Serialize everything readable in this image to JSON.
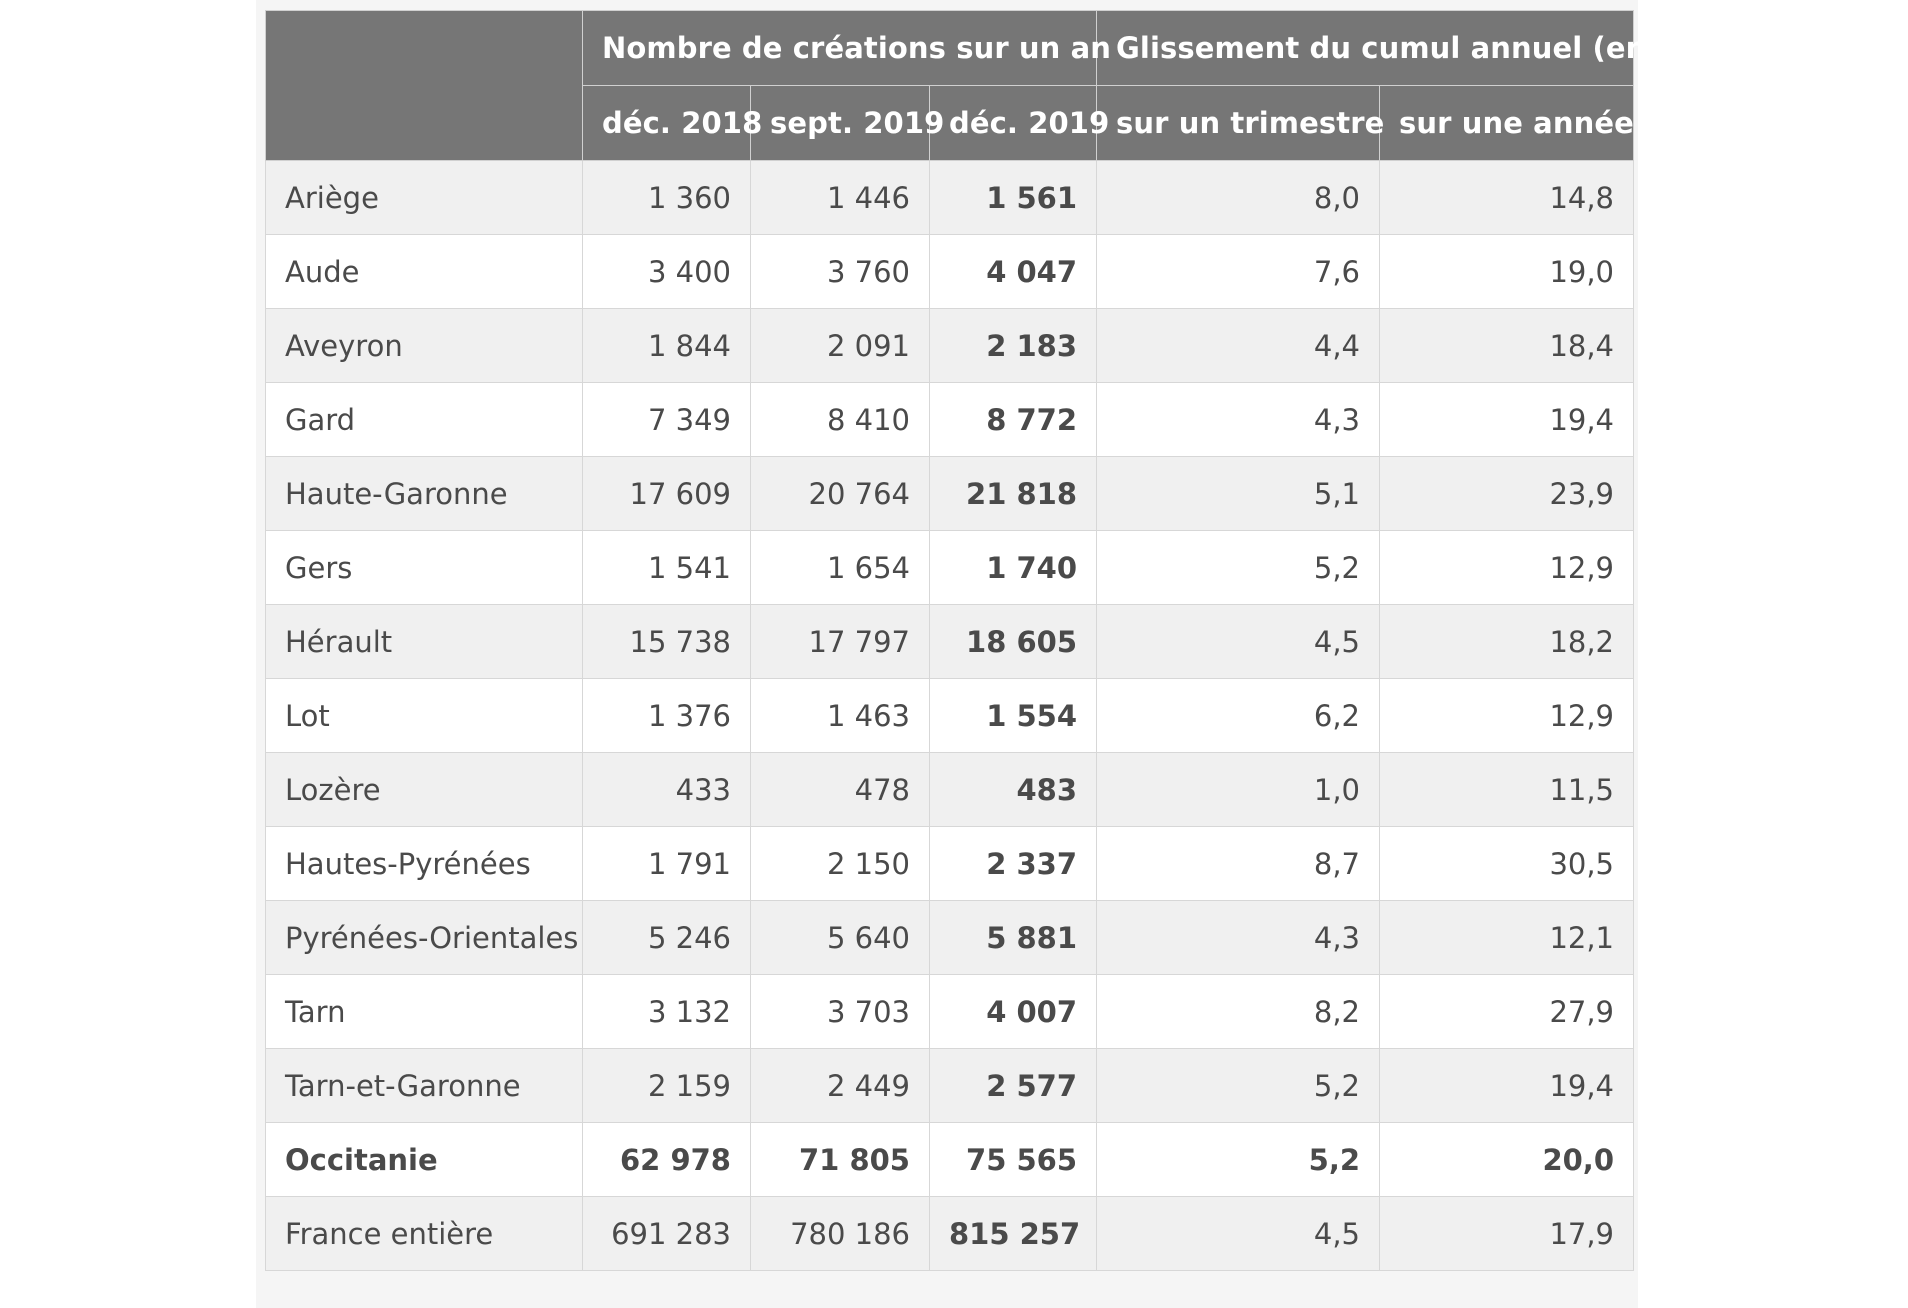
{
  "table": {
    "header": {
      "group_creations": "Nombre de créations sur un an",
      "group_glissement": "Glissement du cumul annuel (en %)",
      "col_dec2018": "déc. 2018",
      "col_sept2019": "sept. 2019",
      "col_dec2019": "déc. 2019",
      "col_trimestre": "sur un trimestre",
      "col_annee": "sur une année"
    },
    "rows": [
      {
        "name": "Ariège",
        "dec2018": "1 360",
        "sept2019": "1 446",
        "dec2019": "1 561",
        "trimestre": "8,0",
        "annee": "14,8"
      },
      {
        "name": "Aude",
        "dec2018": "3 400",
        "sept2019": "3 760",
        "dec2019": "4 047",
        "trimestre": "7,6",
        "annee": "19,0"
      },
      {
        "name": "Aveyron",
        "dec2018": "1 844",
        "sept2019": "2 091",
        "dec2019": "2 183",
        "trimestre": "4,4",
        "annee": "18,4"
      },
      {
        "name": "Gard",
        "dec2018": "7 349",
        "sept2019": "8 410",
        "dec2019": "8 772",
        "trimestre": "4,3",
        "annee": "19,4"
      },
      {
        "name": "Haute-Garonne",
        "dec2018": "17 609",
        "sept2019": "20 764",
        "dec2019": "21 818",
        "trimestre": "5,1",
        "annee": "23,9"
      },
      {
        "name": "Gers",
        "dec2018": "1 541",
        "sept2019": "1 654",
        "dec2019": "1 740",
        "trimestre": "5,2",
        "annee": "12,9"
      },
      {
        "name": "Hérault",
        "dec2018": "15 738",
        "sept2019": "17 797",
        "dec2019": "18 605",
        "trimestre": "4,5",
        "annee": "18,2"
      },
      {
        "name": "Lot",
        "dec2018": "1 376",
        "sept2019": "1 463",
        "dec2019": "1 554",
        "trimestre": "6,2",
        "annee": "12,9"
      },
      {
        "name": "Lozère",
        "dec2018": "433",
        "sept2019": "478",
        "dec2019": "483",
        "trimestre": "1,0",
        "annee": "11,5"
      },
      {
        "name": "Hautes-Pyrénées",
        "dec2018": "1 791",
        "sept2019": "2 150",
        "dec2019": "2 337",
        "trimestre": "8,7",
        "annee": "30,5"
      },
      {
        "name": "Pyrénées-Orientales",
        "dec2018": "5 246",
        "sept2019": "5 640",
        "dec2019": "5 881",
        "trimestre": "4,3",
        "annee": "12,1"
      },
      {
        "name": "Tarn",
        "dec2018": "3 132",
        "sept2019": "3 703",
        "dec2019": "4 007",
        "trimestre": "8,2",
        "annee": "27,9"
      },
      {
        "name": "Tarn-et-Garonne",
        "dec2018": "2 159",
        "sept2019": "2 449",
        "dec2019": "2 577",
        "trimestre": "5,2",
        "annee": "19,4"
      },
      {
        "name": "Occitanie",
        "dec2018": "62 978",
        "sept2019": "71 805",
        "dec2019": "75 565",
        "trimestre": "5,2",
        "annee": "20,0"
      },
      {
        "name": "France entière",
        "dec2018": "691 283",
        "sept2019": "780 186",
        "dec2019": "815 257",
        "trimestre": "4,5",
        "annee": "17,9"
      }
    ]
  },
  "colors": {
    "header_bg": "#767676",
    "header_text": "#ffffff",
    "row_odd": "#f0f0f0",
    "row_even": "#ffffff",
    "border": "#d7d7d7",
    "text": "#4a4a4a"
  }
}
